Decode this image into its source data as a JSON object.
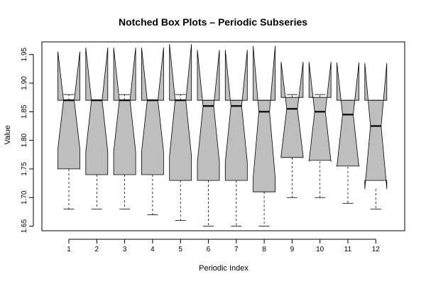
{
  "chart_data": {
    "type": "notched-box",
    "title": "Notched Box Plots – Periodic Subseries",
    "xlabel": "Periodic Index",
    "ylabel": "Value",
    "categories": [
      "1",
      "2",
      "3",
      "4",
      "5",
      "6",
      "7",
      "8",
      "9",
      "10",
      "11",
      "12"
    ],
    "ylim": [
      1.642,
      1.972
    ],
    "yticks": [
      1.65,
      1.7,
      1.75,
      1.8,
      1.85,
      1.9,
      1.95
    ],
    "ytick_labels": [
      "1.65",
      "1.70",
      "1.75",
      "1.80",
      "1.85",
      "1.90",
      "1.95"
    ],
    "grid": false,
    "box_color": "#bebebe",
    "boxes": [
      {
        "category": "1",
        "whisker_low": 1.68,
        "q1": 1.75,
        "median": 1.87,
        "q3": 1.87,
        "whisker_high": 1.88,
        "notch_low": 1.785,
        "notch_high": 1.955
      },
      {
        "category": "2",
        "whisker_low": 1.68,
        "q1": 1.74,
        "median": 1.87,
        "q3": 1.87,
        "whisker_high": 1.87,
        "notch_low": 1.78,
        "notch_high": 1.962
      },
      {
        "category": "3",
        "whisker_low": 1.68,
        "q1": 1.74,
        "median": 1.87,
        "q3": 1.87,
        "whisker_high": 1.88,
        "notch_low": 1.78,
        "notch_high": 1.962
      },
      {
        "category": "4",
        "whisker_low": 1.67,
        "q1": 1.74,
        "median": 1.87,
        "q3": 1.87,
        "whisker_high": 1.87,
        "notch_low": 1.78,
        "notch_high": 1.962
      },
      {
        "category": "5",
        "whisker_low": 1.66,
        "q1": 1.73,
        "median": 1.87,
        "q3": 1.87,
        "whisker_high": 1.88,
        "notch_low": 1.772,
        "notch_high": 1.968
      },
      {
        "category": "6",
        "whisker_low": 1.65,
        "q1": 1.73,
        "median": 1.86,
        "q3": 1.87,
        "whisker_high": 1.87,
        "notch_low": 1.762,
        "notch_high": 1.958
      },
      {
        "category": "7",
        "whisker_low": 1.65,
        "q1": 1.73,
        "median": 1.86,
        "q3": 1.87,
        "whisker_high": 1.87,
        "notch_low": 1.762,
        "notch_high": 1.958
      },
      {
        "category": "8",
        "whisker_low": 1.65,
        "q1": 1.71,
        "median": 1.85,
        "q3": 1.87,
        "whisker_high": 1.87,
        "notch_low": 1.735,
        "notch_high": 1.965
      },
      {
        "category": "9",
        "whisker_low": 1.7,
        "q1": 1.77,
        "median": 1.855,
        "q3": 1.875,
        "whisker_high": 1.88,
        "notch_low": 1.773,
        "notch_high": 1.937
      },
      {
        "category": "10",
        "whisker_low": 1.7,
        "q1": 1.765,
        "median": 1.85,
        "q3": 1.875,
        "whisker_high": 1.88,
        "notch_low": 1.763,
        "notch_high": 1.937
      },
      {
        "category": "11",
        "whisker_low": 1.69,
        "q1": 1.755,
        "median": 1.845,
        "q3": 1.87,
        "whisker_high": 1.87,
        "notch_low": 1.754,
        "notch_high": 1.936
      },
      {
        "category": "12",
        "whisker_low": 1.68,
        "q1": 1.73,
        "median": 1.825,
        "q3": 1.87,
        "whisker_high": 1.87,
        "notch_low": 1.715,
        "notch_high": 1.935
      }
    ]
  }
}
